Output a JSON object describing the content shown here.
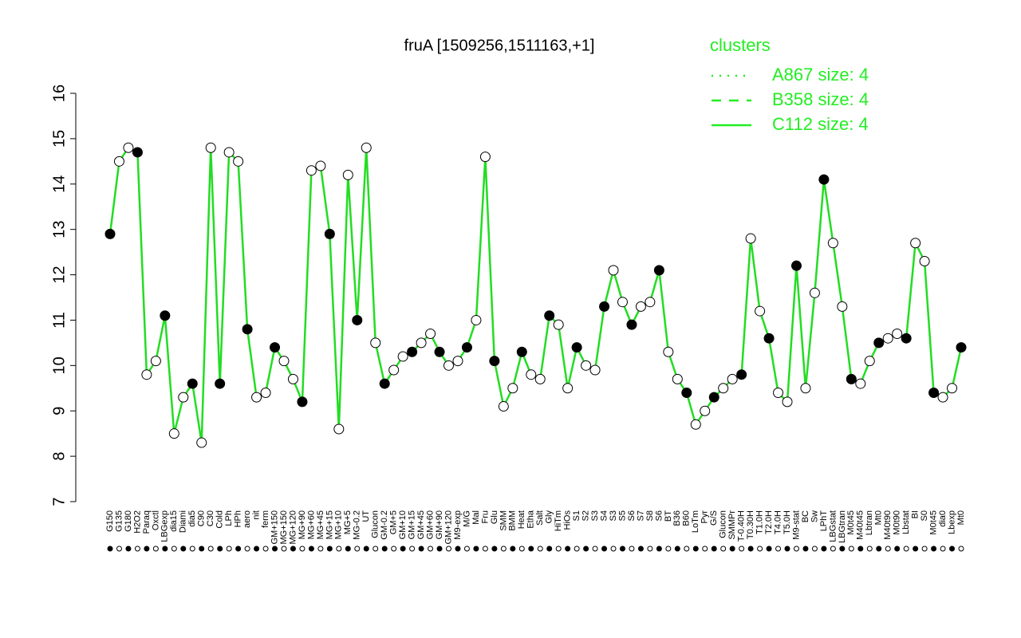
{
  "chart_data": {
    "type": "line",
    "title": "fruA [1509256,1511163,+1]",
    "legend_title": "clusters",
    "legend": [
      {
        "name": "A867 size: 4",
        "dash": "dotted"
      },
      {
        "name": "B358 size: 4",
        "dash": "dashed"
      },
      {
        "name": "C112 size: 4",
        "dash": "solid"
      }
    ],
    "color": "#22dd22",
    "legend_color": "#22ee22",
    "ylim": [
      7,
      16
    ],
    "yticks": [
      7,
      8,
      9,
      10,
      11,
      12,
      13,
      14,
      15,
      16
    ],
    "categories": [
      "G150",
      "G135",
      "G180",
      "H2O2",
      "Paraq",
      "Oxctl",
      "LBGexp",
      "dia15",
      "Diami",
      "dia5",
      "C90",
      "C30",
      "Cold",
      "LPh",
      "HPh",
      "aero",
      "nit",
      "ferm",
      "GM+150",
      "MG+150",
      "MG+120",
      "MG+90",
      "MG+60",
      "MG+45",
      "MG+15",
      "MG+10",
      "MG+5",
      "MG-0.2",
      "UT",
      "Glucon",
      "GM-0.2",
      "GM+5",
      "GM+10",
      "GM+15",
      "GM+45",
      "GM+60",
      "GM+90",
      "GM+120",
      "M9-exp",
      "M/G",
      "Mal",
      "Fru",
      "Glu",
      "SMM",
      "BMM",
      "Heat",
      "Etha",
      "Salt",
      "Gly",
      "HiTm",
      "HiOs",
      "S1",
      "S2",
      "S3",
      "S4",
      "S3",
      "S5",
      "S6",
      "S7",
      "S8",
      "S6",
      "BT",
      "B36",
      "B60",
      "LoTm",
      "Pyr",
      "G/S",
      "Glucon",
      "SMMPr",
      "T-0.40H",
      "T0.30H",
      "T1.0H",
      "T2.0H",
      "T4.0H",
      "T5.0H",
      "M9-stat",
      "BC",
      "Sw",
      "LPhT",
      "LBGstat",
      "LBGtran",
      "M0t45",
      "M40t45",
      "Lbtran",
      "Mt0",
      "M40t90",
      "M0t90",
      "Lbstat",
      "BI",
      "S0",
      "M0t45",
      "dia0",
      "Lbexp",
      "Mt0"
    ],
    "values": [
      12.9,
      14.5,
      14.8,
      14.7,
      9.8,
      10.1,
      11.1,
      8.5,
      9.3,
      9.6,
      8.3,
      14.8,
      9.6,
      14.7,
      14.5,
      10.8,
      9.3,
      9.4,
      10.4,
      10.1,
      9.7,
      9.2,
      14.3,
      14.4,
      12.9,
      8.6,
      14.2,
      11.0,
      14.8,
      10.5,
      9.6,
      9.9,
      10.2,
      10.3,
      10.5,
      10.7,
      10.3,
      10.0,
      10.1,
      10.4,
      11.0,
      14.6,
      10.1,
      9.1,
      9.5,
      10.3,
      9.8,
      9.7,
      11.1,
      10.9,
      9.5,
      10.4,
      10.0,
      9.9,
      11.3,
      12.1,
      11.4,
      10.9,
      11.3,
      11.4,
      12.1,
      10.3,
      9.7,
      9.4,
      8.7,
      9.0,
      9.3,
      9.5,
      9.7,
      9.8,
      12.8,
      11.2,
      10.6,
      9.4,
      9.2,
      12.2,
      9.5,
      11.6,
      14.1,
      12.7,
      11.3,
      9.7,
      9.6,
      10.1,
      10.5,
      10.6,
      10.7,
      10.6,
      12.7,
      12.3,
      9.4,
      9.3,
      9.5,
      10.4
    ]
  }
}
